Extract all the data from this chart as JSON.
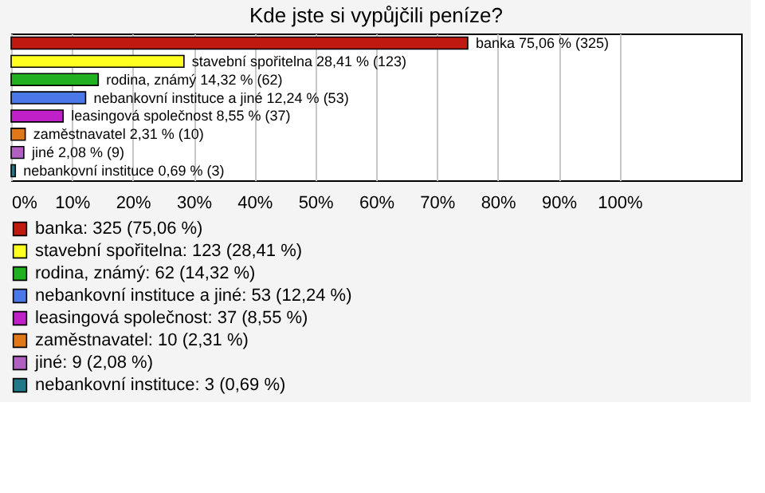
{
  "chart_data": {
    "type": "bar",
    "orientation": "horizontal",
    "title": "Kde jste si vypůjčili peníze?",
    "categories": [
      "banka",
      "stavební spořitelna",
      "rodina, známý",
      "nebankovní instituce a jiné",
      "leasingová společnost",
      "zaměstnavatel",
      "jiné",
      "nebankovní instituce"
    ],
    "series": [
      {
        "name": "banka: 325 (75,06 %)",
        "color": "#c01a10",
        "values": [
          75.06,
          null,
          null,
          null,
          null,
          null,
          null,
          null
        ],
        "value_labels": [
          "75,06 % (325)",
          null,
          null,
          null,
          null,
          null,
          null,
          null
        ]
      },
      {
        "name": "stavební spořitelna: 123 (28,41 %)",
        "color": "#ffff20",
        "values": [
          null,
          28.41,
          null,
          null,
          null,
          null,
          null,
          null
        ],
        "value_labels": [
          null,
          "28,41 % (123)",
          null,
          null,
          null,
          null,
          null,
          null
        ]
      },
      {
        "name": "rodina, známý: 62 (14,32 %)",
        "color": "#20b020",
        "values": [
          null,
          null,
          14.32,
          null,
          null,
          null,
          null,
          null
        ],
        "value_labels": [
          null,
          null,
          "14,32 % (62)",
          null,
          null,
          null,
          null,
          null
        ]
      },
      {
        "name": "nebankovní instituce a jiné: 53 (12,24 %)",
        "color": "#4a78e8",
        "values": [
          null,
          null,
          null,
          12.24,
          null,
          null,
          null,
          null
        ],
        "value_labels": [
          null,
          null,
          null,
          "12,24 % (53)",
          null,
          null,
          null,
          null
        ]
      },
      {
        "name": "leasingová společnost: 37 (8,55 %)",
        "color": "#c020c8",
        "values": [
          null,
          null,
          null,
          null,
          8.55,
          null,
          null,
          null
        ],
        "value_labels": [
          null,
          null,
          null,
          null,
          "8,55 % (37)",
          null,
          null,
          null
        ]
      },
      {
        "name": "zaměstnavatel: 10 (2,31 %)",
        "color": "#e07818",
        "values": [
          null,
          null,
          null,
          null,
          null,
          2.31,
          null,
          null
        ],
        "value_labels": [
          null,
          null,
          null,
          null,
          null,
          "2,31 % (10)",
          null,
          null
        ]
      },
      {
        "name": "jiné: 9 (2,08 %)",
        "color": "#b060c0",
        "values": [
          null,
          null,
          null,
          null,
          null,
          null,
          2.08,
          null
        ],
        "value_labels": [
          null,
          null,
          null,
          null,
          null,
          null,
          "2,08 % (9)",
          null
        ]
      },
      {
        "name": "nebankovní instituce: 3 (0,69 %)",
        "color": "#207888",
        "values": [
          null,
          null,
          null,
          null,
          null,
          null,
          null,
          0.69
        ],
        "value_labels": [
          null,
          null,
          null,
          null,
          null,
          null,
          null,
          "0,69 % (3)"
        ]
      }
    ],
    "xlim": [
      0,
      120
    ],
    "xticks": [
      {
        "value": 0,
        "label": "0%"
      },
      {
        "value": 10,
        "label": "10%"
      },
      {
        "value": 20,
        "label": "20%"
      },
      {
        "value": 30,
        "label": "30%"
      },
      {
        "value": 40,
        "label": "40%"
      },
      {
        "value": 50,
        "label": "50%"
      },
      {
        "value": 60,
        "label": "60%"
      },
      {
        "value": 70,
        "label": "70%"
      },
      {
        "value": 80,
        "label": "80%"
      },
      {
        "value": 90,
        "label": "90%"
      },
      {
        "value": 100,
        "label": "100%"
      }
    ],
    "grid": "x",
    "tick_labels": "x",
    "legend": "bottom"
  }
}
